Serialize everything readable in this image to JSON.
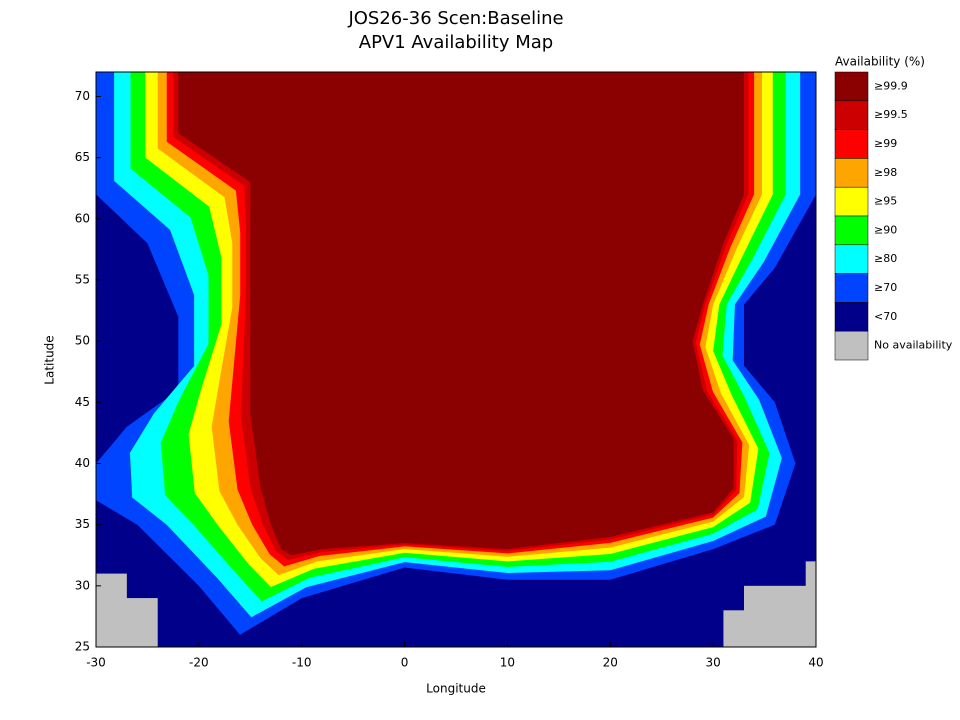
{
  "title": [
    "JOS26-36 Scen:Baseline",
    "APV1 Availability Map"
  ],
  "map": {
    "xlabel": "Longitude",
    "ylabel": "Latitude",
    "xlim": [
      -30,
      40
    ],
    "ylim": [
      25,
      72
    ],
    "xticks": [
      -30,
      -20,
      -10,
      0,
      10,
      20,
      30,
      40
    ],
    "yticks": [
      25,
      30,
      35,
      40,
      45,
      50,
      55,
      60,
      65,
      70
    ],
    "legend": {
      "title": "Availability (%)",
      "entries": [
        {
          "label": "≥99.9",
          "color": "#8b0000"
        },
        {
          "label": "≥99.5",
          "color": "#cc0000"
        },
        {
          "label": "≥99",
          "color": "#ff0000"
        },
        {
          "label": "≥98",
          "color": "#ffa500"
        },
        {
          "label": "≥95",
          "color": "#ffff00"
        },
        {
          "label": "≥90",
          "color": "#00ff00"
        },
        {
          "label": "≥80",
          "color": "#00ffff"
        },
        {
          "label": "≥70",
          "color": "#0044ff"
        },
        {
          "label": "<70",
          "color": "#00008b"
        },
        {
          "label": "No availability",
          "color": "#c0c0c0"
        }
      ]
    }
  }
}
